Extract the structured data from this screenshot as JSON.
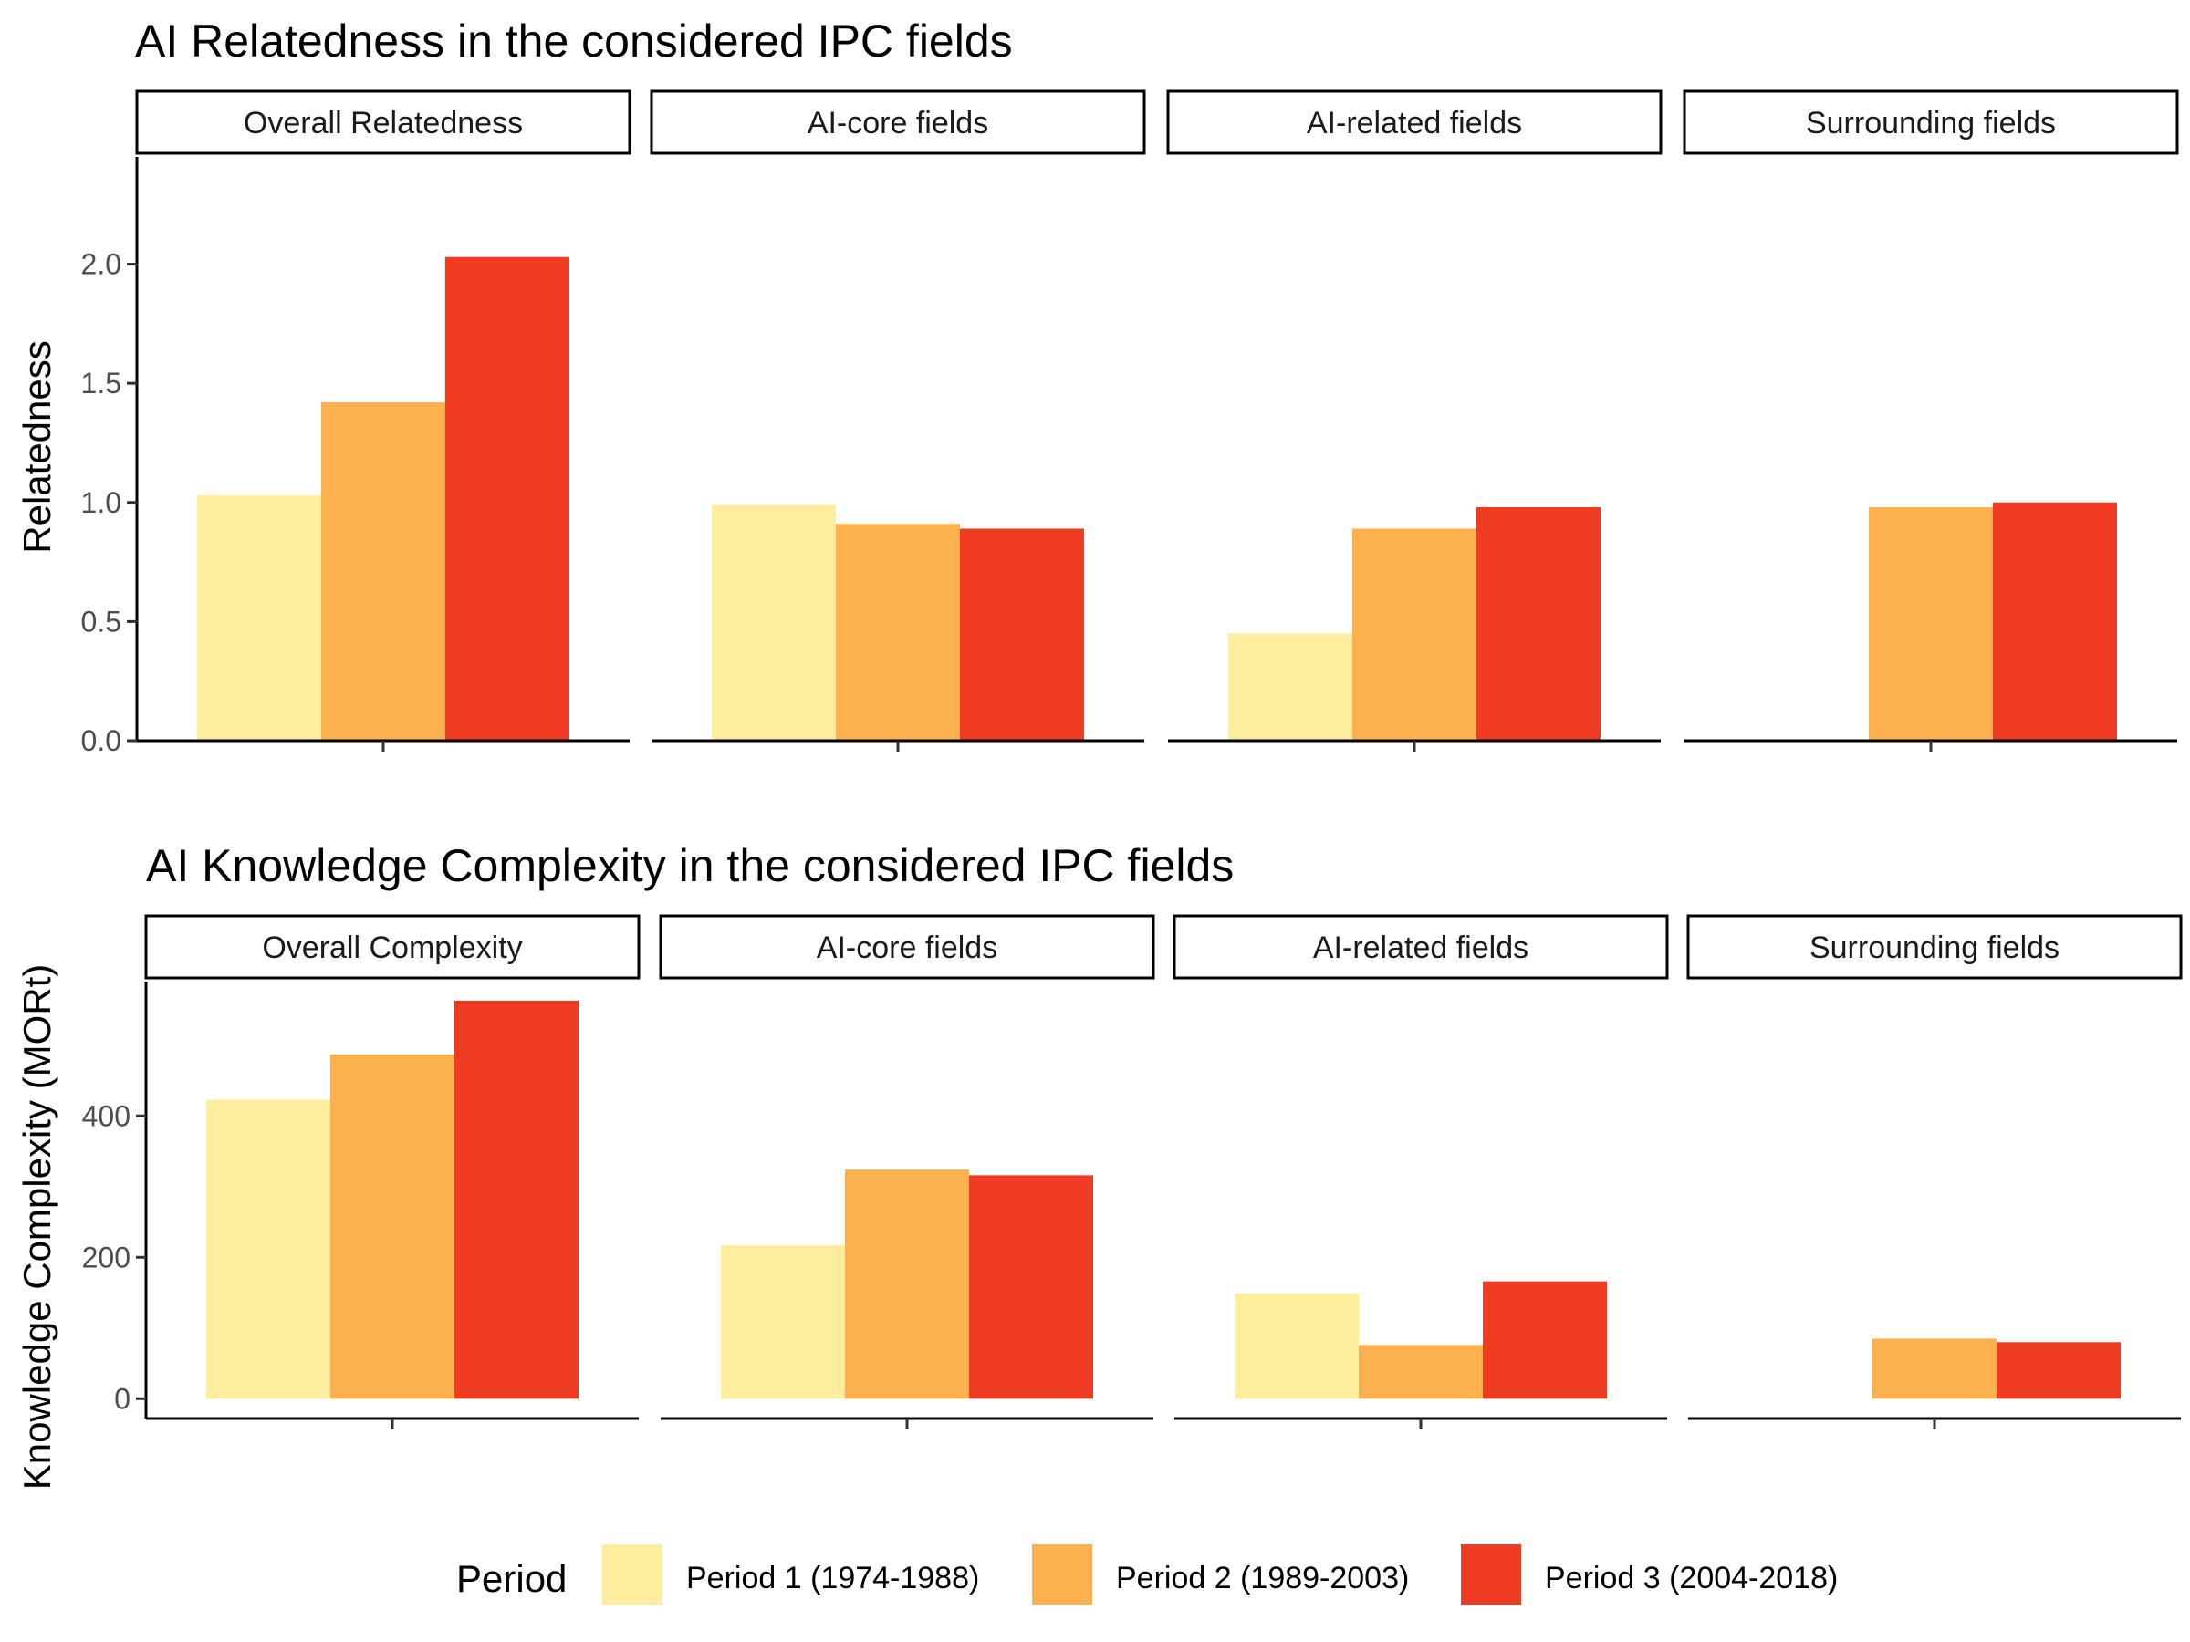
{
  "colors": {
    "period_1": "#FEEC9F",
    "period_2": "#FCB04E",
    "period_3": "#EF3B22"
  },
  "chart_data": [
    {
      "type": "bar",
      "title": "AI Relatedness in the considered IPC fields",
      "ylabel": "Relatedness",
      "ylim": [
        0,
        2.45
      ],
      "yticks": [
        0.0,
        0.5,
        1.0,
        1.5,
        2.0
      ],
      "ytick_labels": [
        "0.0",
        "0.5",
        "1.0",
        "1.5",
        "2.0"
      ],
      "facets": [
        {
          "label": "Overall Relatedness",
          "values": [
            1.03,
            1.42,
            2.03
          ]
        },
        {
          "label": "AI-core fields",
          "values": [
            0.99,
            0.91,
            0.89
          ]
        },
        {
          "label": "AI-related fields",
          "values": [
            0.45,
            0.89,
            0.98
          ]
        },
        {
          "label": "Surrounding fields",
          "values": [
            null,
            0.98,
            1.0
          ]
        }
      ],
      "series": [
        {
          "name": "Period 1 (1974-1988)"
        },
        {
          "name": "Period 2 (1989-2003)"
        },
        {
          "name": "Period 3 (2004-2018)"
        }
      ]
    },
    {
      "type": "bar",
      "title": "AI Knowledge Complexity in the considered IPC fields",
      "ylabel": "Knowledge Complexity (MORt)",
      "ylim": [
        -28,
        590
      ],
      "yticks": [
        0,
        200,
        400
      ],
      "ytick_labels": [
        "0",
        "200",
        "400"
      ],
      "facets": [
        {
          "label": "Overall Complexity",
          "values": [
            423,
            487,
            563
          ]
        },
        {
          "label": "AI-core fields",
          "values": [
            217,
            324,
            316
          ]
        },
        {
          "label": "AI-related fields",
          "values": [
            149,
            76,
            166
          ]
        },
        {
          "label": "Surrounding fields",
          "values": [
            null,
            85,
            80
          ]
        }
      ],
      "series": [
        {
          "name": "Period 1 (1974-1988)"
        },
        {
          "name": "Period 2 (1989-2003)"
        },
        {
          "name": "Period 3 (2004-2018)"
        }
      ]
    }
  ],
  "legend": {
    "title": "Period",
    "items": [
      "Period 1 (1974-1988)",
      "Period 2 (1989-2003)",
      "Period 3 (2004-2018)"
    ]
  }
}
